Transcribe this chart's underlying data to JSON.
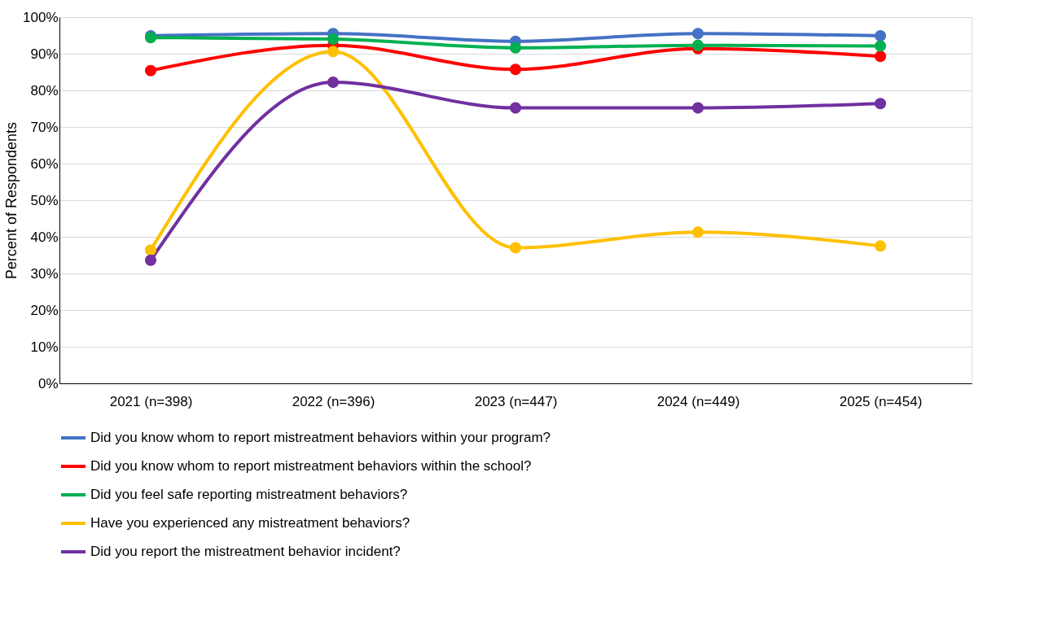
{
  "chart_data": {
    "type": "line",
    "ylabel": "Percent of Respondents",
    "categories": [
      "2021 (n=398)",
      "2022 (n=396)",
      "2023 (n=447)",
      "2024 (n=449)",
      "2025 (n=454)"
    ],
    "ylim": [
      0,
      100
    ],
    "yticks": [
      {
        "value": 0,
        "label": "0%"
      },
      {
        "value": 10,
        "label": "10%"
      },
      {
        "value": 20,
        "label": "20%"
      },
      {
        "value": 30,
        "label": "30%"
      },
      {
        "value": 40,
        "label": "40%"
      },
      {
        "value": 50,
        "label": "50%"
      },
      {
        "value": 60,
        "label": "60%"
      },
      {
        "value": 70,
        "label": "70%"
      },
      {
        "value": 80,
        "label": "80%"
      },
      {
        "value": 90,
        "label": "90%"
      },
      {
        "value": 100,
        "label": "100%"
      }
    ],
    "grid": "y",
    "legend": "bottom",
    "marker": "circle",
    "line_style": "solid",
    "series": [
      {
        "name": "Did you know whom to report mistreatment behaviors within your program?",
        "color": "#4472c4",
        "values": [
          94.9,
          95.5,
          93.4,
          95.5,
          94.9
        ]
      },
      {
        "name": "Did you know whom to report mistreatment behaviors within the school?",
        "color": "#ff0000",
        "values": [
          85.4,
          92.3,
          85.7,
          91.4,
          89.3
        ]
      },
      {
        "name": "Did you feel safe reporting mistreatment behaviors?",
        "color": "#00b050",
        "values": [
          94.4,
          94.0,
          91.6,
          92.3,
          92.1
        ]
      },
      {
        "name": "Have you experienced any mistreatment behaviors?",
        "color": "#ffc000",
        "values": [
          36.4,
          90.6,
          37.0,
          41.3,
          37.5
        ]
      },
      {
        "name": "Did you report the mistreatment behavior incident?",
        "color": "#7030a0",
        "values": [
          33.6,
          82.2,
          75.2,
          75.2,
          76.4
        ]
      }
    ]
  }
}
